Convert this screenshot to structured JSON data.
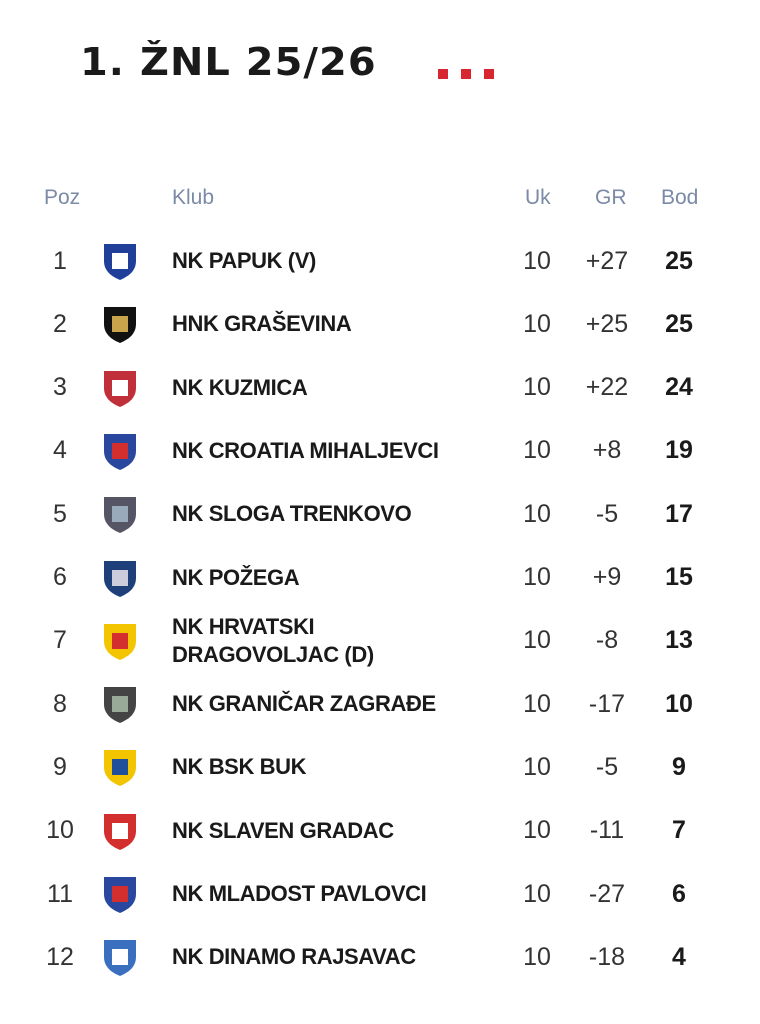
{
  "header": {
    "title": "1. ŽNL 25/26"
  },
  "table": {
    "columns": [
      "Poz",
      "Klub",
      "Uk",
      "GR",
      "Bod"
    ],
    "rows": [
      [
        1,
        "NK PAPUK (V)",
        10,
        "+27",
        25
      ],
      [
        2,
        "HNK GRAŠEVINA",
        10,
        "+25",
        25
      ],
      [
        3,
        "NK KUZMICA",
        10,
        "+22",
        24
      ],
      [
        4,
        "NK CROATIA MIHALJEVCI",
        10,
        "+8",
        19
      ],
      [
        5,
        "NK SLOGA TRENKOVO",
        10,
        "-5",
        17
      ],
      [
        6,
        "NK POŽEGA",
        10,
        "+9",
        15
      ],
      [
        7,
        "NK HRVATSKI DRAGOVOLJAC (D)",
        10,
        "-8",
        13
      ],
      [
        8,
        "NK GRANIČAR ZAGRAĐE",
        10,
        "-17",
        10
      ],
      [
        9,
        "NK BSK BUK",
        10,
        "-5",
        9
      ],
      [
        10,
        "NK SLAVEN GRADAC",
        10,
        "-11",
        7
      ],
      [
        11,
        "NK MLADOST PAVLOVCI",
        10,
        "-27",
        6
      ],
      [
        12,
        "NK DINAMO RAJSAVAC",
        10,
        "-18",
        4
      ]
    ]
  }
}
